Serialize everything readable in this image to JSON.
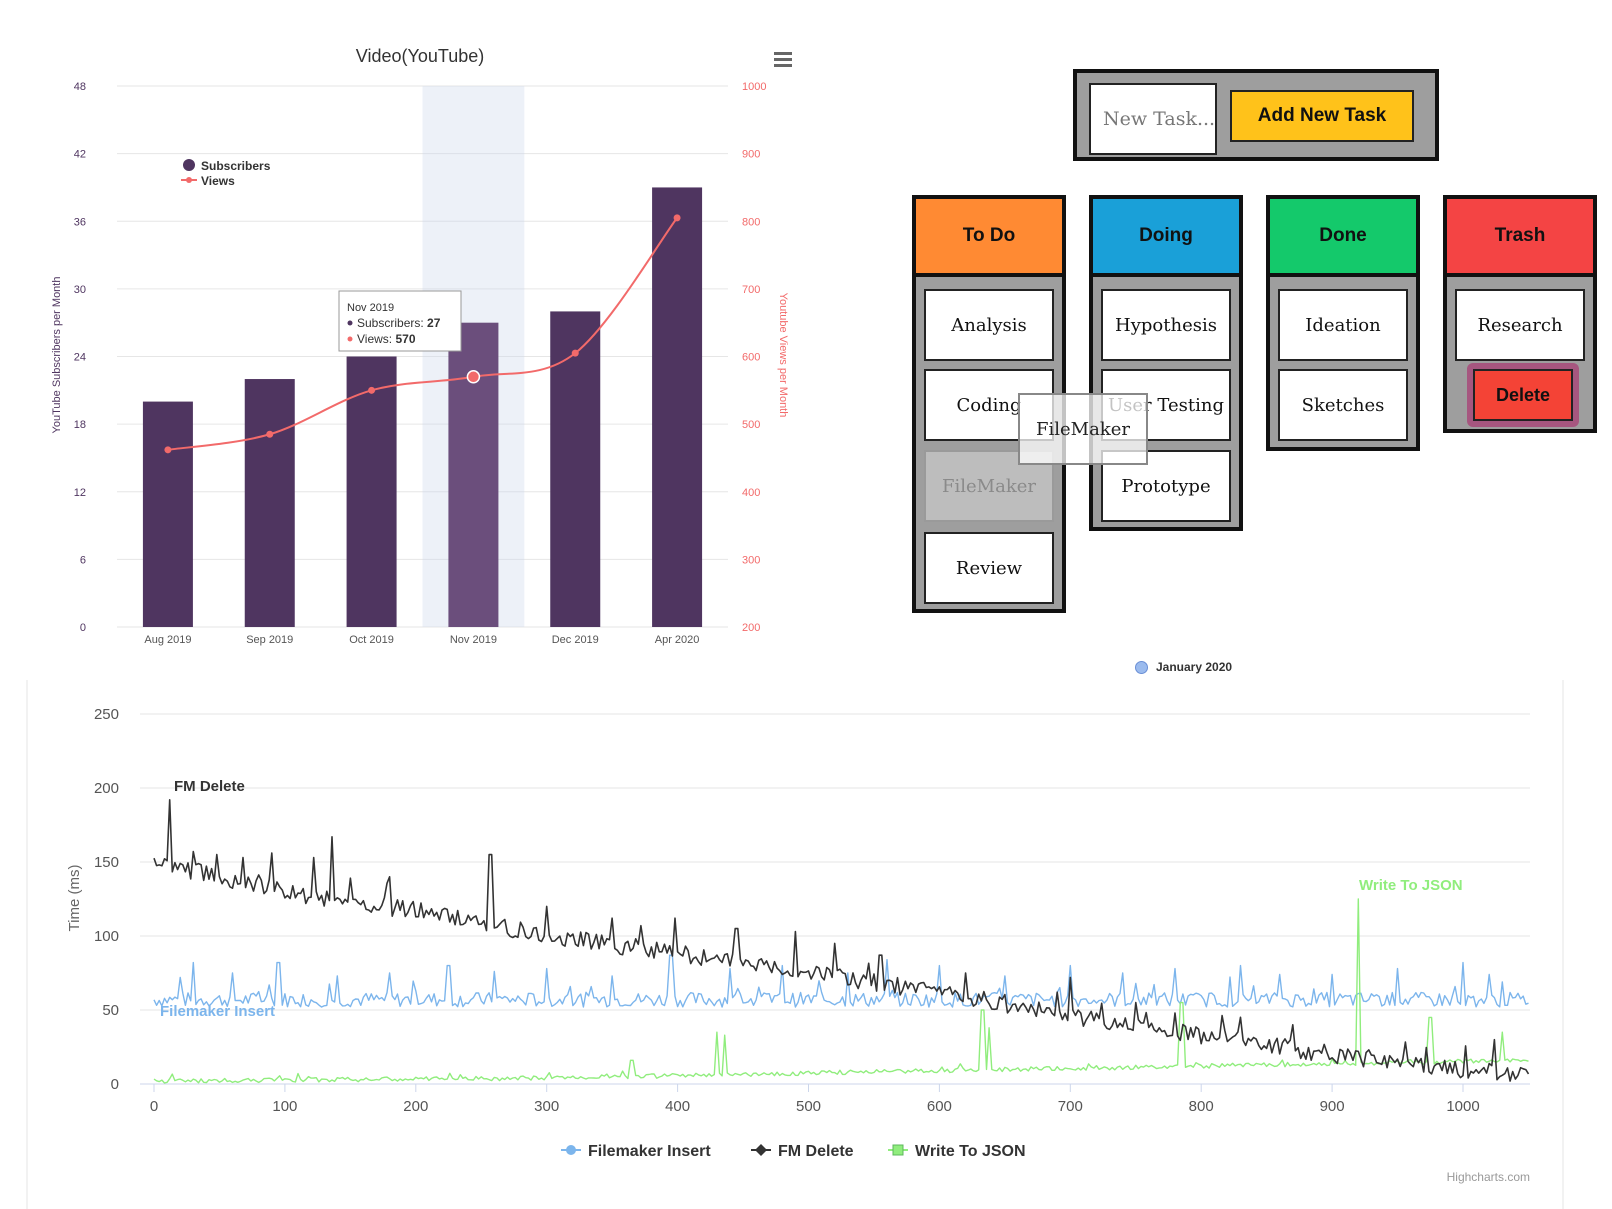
{
  "chart_data": [
    {
      "type": "bar",
      "title": "Video(YouTube)",
      "categories": [
        "Aug 2019",
        "Sep 2019",
        "Oct 2019",
        "Nov 2019",
        "Dec 2019",
        "Apr 2020"
      ],
      "series": [
        {
          "name": "Subscribers",
          "type": "bar",
          "axis": "left",
          "values": [
            20,
            22,
            24,
            27,
            28,
            39
          ],
          "color": "#4f3560"
        },
        {
          "name": "Views",
          "type": "line",
          "axis": "right",
          "values": [
            462,
            485,
            550,
            570,
            605,
            805
          ],
          "color": "#f26a6a"
        }
      ],
      "ylabel": "YouTube Subscribers per Month",
      "y2label": "Youtube Views per Month",
      "ylim": [
        0,
        48
      ],
      "y_ticks": [
        0,
        6,
        12,
        18,
        24,
        30,
        36,
        42,
        48
      ],
      "y2lim": [
        200,
        1000
      ],
      "y2_ticks": [
        200,
        300,
        400,
        500,
        600,
        700,
        800,
        900,
        1000
      ],
      "highlighted_category": "Nov 2019",
      "tooltip": {
        "title": "Nov 2019",
        "line1_label": "Subscribers:",
        "line1_value": "27",
        "line2_label": "Views:",
        "line2_value": "570"
      },
      "legend_position": "top-left",
      "grid": true
    },
    {
      "type": "line",
      "ylabel": "Time (ms)",
      "xlim": [
        0,
        1050
      ],
      "ylim": [
        0,
        250
      ],
      "x_ticks": [
        0,
        100,
        200,
        300,
        400,
        500,
        600,
        700,
        800,
        900,
        1000
      ],
      "y_ticks": [
        0,
        50,
        100,
        150,
        200,
        250
      ],
      "grid": true,
      "legend_position": "bottom",
      "series": [
        {
          "name": "Filemaker Insert",
          "color": "#7cb5ec",
          "baseline": [
            [
              0,
              57
            ],
            [
              1050,
              57
            ]
          ],
          "spikes": [
            [
              20,
              72
            ],
            [
              30,
              82
            ],
            [
              60,
              75
            ],
            [
              95,
              82
            ],
            [
              140,
              73
            ],
            [
              180,
              75
            ],
            [
              225,
              80
            ],
            [
              260,
              76
            ],
            [
              300,
              78
            ],
            [
              350,
              73
            ],
            [
              395,
              87
            ],
            [
              440,
              78
            ],
            [
              480,
              80
            ],
            [
              530,
              75
            ],
            [
              560,
              84
            ],
            [
              600,
              80
            ],
            [
              650,
              73
            ],
            [
              700,
              80
            ],
            [
              740,
              75
            ],
            [
              780,
              78
            ],
            [
              830,
              80
            ],
            [
              860,
              74
            ],
            [
              900,
              74
            ],
            [
              950,
              78
            ],
            [
              1000,
              82
            ],
            [
              1020,
              74
            ]
          ]
        },
        {
          "name": "FM Delete",
          "color": "#333333",
          "baseline": [
            [
              0,
              150
            ],
            [
              100,
              130
            ],
            [
              200,
              117
            ],
            [
              300,
              100
            ],
            [
              400,
              88
            ],
            [
              500,
              75
            ],
            [
              600,
              62
            ],
            [
              700,
              46
            ],
            [
              800,
              33
            ],
            [
              900,
              20
            ],
            [
              1000,
              10
            ],
            [
              1050,
              5
            ]
          ],
          "spikes": [
            [
              12,
              192
            ],
            [
              30,
              157
            ],
            [
              48,
              155
            ],
            [
              68,
              153
            ],
            [
              90,
              156
            ],
            [
              122,
              153
            ],
            [
              136,
              167
            ],
            [
              180,
              140
            ],
            [
              257,
              155
            ],
            [
              300,
              120
            ],
            [
              350,
              112
            ],
            [
              398,
              112
            ],
            [
              445,
              105
            ],
            [
              490,
              103
            ],
            [
              520,
              95
            ],
            [
              555,
              87
            ],
            [
              620,
              75
            ],
            [
              690,
              62
            ],
            [
              700,
              72
            ],
            [
              750,
              55
            ],
            [
              780,
              48
            ],
            [
              870,
              40
            ],
            [
              920,
              22
            ]
          ]
        },
        {
          "name": "Write To JSON",
          "color": "#90ed7d",
          "baseline": [
            [
              0,
              2
            ],
            [
              300,
              4
            ],
            [
              600,
              9
            ],
            [
              1050,
              16
            ]
          ],
          "spikes": [
            [
              365,
              16
            ],
            [
              430,
              35
            ],
            [
              436,
              33
            ],
            [
              633,
              50
            ],
            [
              638,
              38
            ],
            [
              785,
              55
            ],
            [
              920,
              125
            ],
            [
              975,
              45
            ],
            [
              1030,
              35
            ]
          ]
        }
      ],
      "annotations": {
        "fm_delete": "FM Delete",
        "write_json": "Write To JSON",
        "filemaker_insert": "Filemaker Insert"
      },
      "credit": "Highcharts.com"
    }
  ],
  "kanban": {
    "input_placeholder": "New Task...",
    "add_button": "Add New Task",
    "columns": [
      {
        "title": "To Do",
        "color": "#ff8a33",
        "cards": [
          "Analysis",
          "Coding",
          "FileMaker",
          "Review"
        ]
      },
      {
        "title": "Doing",
        "color": "#1aa0d8",
        "cards": [
          "Hypothesis",
          "User Testing",
          "Prototype"
        ]
      },
      {
        "title": "Done",
        "color": "#14c96b",
        "cards": [
          "Ideation",
          "Sketches"
        ]
      },
      {
        "title": "Trash",
        "color": "#f44444",
        "cards": [
          "Research"
        ]
      }
    ],
    "dragging_card": "FileMaker",
    "delete_button": "Delete"
  },
  "month_legend": "January 2020"
}
